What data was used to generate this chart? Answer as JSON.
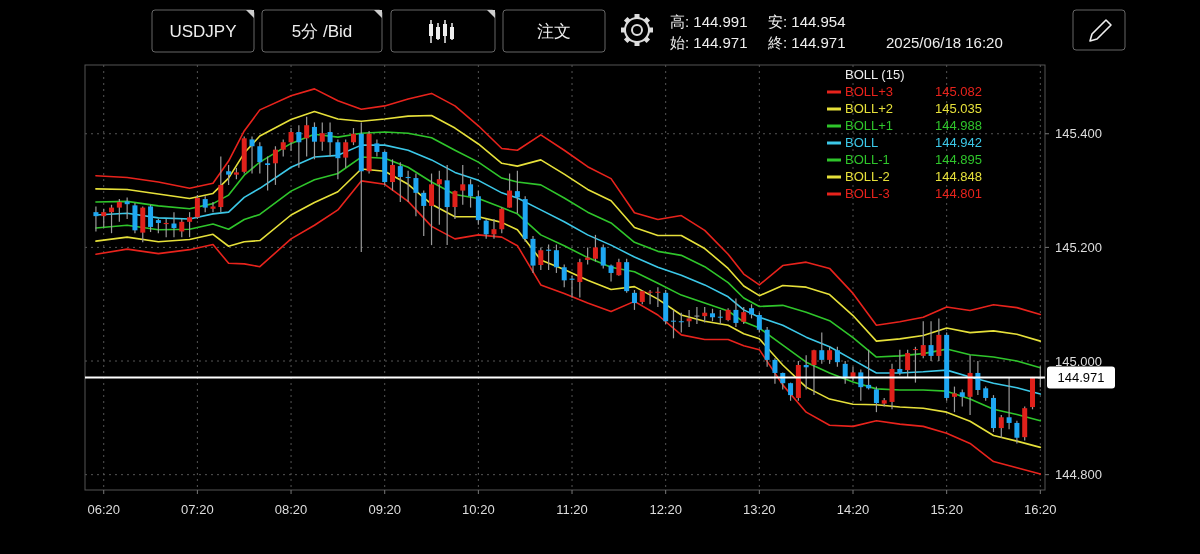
{
  "chart_data": {
    "type": "candlestick",
    "title": "USDJPY",
    "subtitle": "5分 /Bid",
    "annotations": [
      "注文",
      "高: 144.991",
      "安: 144.954",
      "始: 144.971",
      "終: 144.971",
      "2025/06/18 16:20",
      "145.082",
      "145.035",
      "144.988",
      "144.942",
      "144.895",
      "144.848",
      "144.801"
    ],
    "legend_title": "BOLL (15)",
    "legend": "top right",
    "grid": true,
    "xlim": [
      "2025-06-18T06:08",
      "2025-06-18T16:23"
    ],
    "xticks": [
      {
        "value": "2025-06-18T06:20",
        "label": "06:20"
      },
      {
        "value": "2025-06-18T07:20",
        "label": "07:20"
      },
      {
        "value": "2025-06-18T08:20",
        "label": "08:20"
      },
      {
        "value": "2025-06-18T09:20",
        "label": "09:20"
      },
      {
        "value": "2025-06-18T10:20",
        "label": "10:20"
      },
      {
        "value": "2025-06-18T11:20",
        "label": "11:20"
      },
      {
        "value": "2025-06-18T12:20",
        "label": "12:20"
      },
      {
        "value": "2025-06-18T13:20",
        "label": "13:20"
      },
      {
        "value": "2025-06-18T14:20",
        "label": "14:20"
      },
      {
        "value": "2025-06-18T15:20",
        "label": "15:20"
      },
      {
        "value": "2025-06-18T16:20",
        "label": "16:20"
      }
    ],
    "ylim": [
      144.773,
      145.521
    ],
    "yticks": [
      {
        "value": 144.8,
        "label": "144.800"
      },
      {
        "value": 145.0,
        "label": "145.000"
      },
      {
        "value": 145.2,
        "label": "145.200"
      },
      {
        "value": 145.4,
        "label": "145.400"
      }
    ],
    "ref_lines": [
      {
        "axis": "y",
        "value": 144.971,
        "label": "144.971",
        "color": "#ffffff"
      }
    ],
    "x": [
      "2025-06-18T06:15",
      "2025-06-18T06:35",
      "2025-06-18T06:55",
      "2025-06-18T07:15",
      "2025-06-18T07:30",
      "2025-06-18T07:40",
      "2025-06-18T07:50",
      "2025-06-18T08:00",
      "2025-06-18T08:20",
      "2025-06-18T08:35",
      "2025-06-18T08:50",
      "2025-06-18T09:05",
      "2025-06-18T09:20",
      "2025-06-18T09:35",
      "2025-06-18T09:50",
      "2025-06-18T10:05",
      "2025-06-18T10:20",
      "2025-06-18T10:35",
      "2025-06-18T10:45",
      "2025-06-18T11:00",
      "2025-06-18T11:15",
      "2025-06-18T11:30",
      "2025-06-18T11:45",
      "2025-06-18T12:00",
      "2025-06-18T12:15",
      "2025-06-18T12:30",
      "2025-06-18T12:45",
      "2025-06-18T13:00",
      "2025-06-18T13:10",
      "2025-06-18T13:20",
      "2025-06-18T13:35",
      "2025-06-18T13:50",
      "2025-06-18T14:05",
      "2025-06-18T14:20",
      "2025-06-18T14:35",
      "2025-06-18T14:50",
      "2025-06-18T15:05",
      "2025-06-18T15:20",
      "2025-06-18T15:35",
      "2025-06-18T15:50",
      "2025-06-18T16:05",
      "2025-06-18T16:20"
    ],
    "series": [
      {
        "type": "line",
        "name": "BOLL+3",
        "color": "#e8231c",
        "values": [
          145.326,
          145.323,
          145.315,
          145.304,
          145.313,
          145.352,
          145.405,
          145.442,
          145.467,
          145.479,
          145.458,
          145.443,
          145.449,
          145.461,
          145.471,
          145.449,
          145.414,
          145.374,
          145.371,
          145.398,
          145.371,
          145.342,
          145.321,
          145.261,
          145.249,
          145.256,
          145.23,
          145.188,
          145.153,
          145.134,
          145.168,
          145.174,
          145.163,
          145.119,
          145.063,
          145.069,
          145.077,
          145.095,
          145.089,
          145.099,
          145.094,
          145.082
        ]
      },
      {
        "type": "line",
        "name": "BOLL+2",
        "color": "#e6e03a",
        "values": [
          145.303,
          145.302,
          145.294,
          145.286,
          145.295,
          145.322,
          145.366,
          145.396,
          145.425,
          145.439,
          145.426,
          145.422,
          145.426,
          145.431,
          145.432,
          145.41,
          145.382,
          145.348,
          145.343,
          145.354,
          145.329,
          145.302,
          145.282,
          145.235,
          145.221,
          145.221,
          145.198,
          145.163,
          145.132,
          145.115,
          145.133,
          145.13,
          145.117,
          145.08,
          145.035,
          145.039,
          145.045,
          145.058,
          145.05,
          145.053,
          145.047,
          145.035
        ]
      },
      {
        "type": "line",
        "name": "BOLL+1",
        "color": "#2fc52b",
        "values": [
          145.28,
          145.281,
          145.273,
          145.268,
          145.277,
          145.292,
          145.327,
          145.35,
          145.383,
          145.399,
          145.394,
          145.401,
          145.403,
          145.401,
          145.393,
          145.371,
          145.35,
          145.322,
          145.315,
          145.31,
          145.287,
          145.262,
          145.243,
          145.209,
          145.193,
          145.186,
          145.166,
          145.138,
          145.111,
          145.096,
          145.098,
          145.086,
          145.071,
          145.041,
          145.007,
          145.009,
          145.013,
          145.021,
          145.011,
          145.007,
          145.0,
          144.988
        ]
      },
      {
        "type": "line",
        "name": "BOLL",
        "color": "#3cc8e8",
        "values": [
          145.257,
          145.26,
          145.252,
          145.25,
          145.259,
          145.262,
          145.288,
          145.304,
          145.341,
          145.359,
          145.362,
          145.38,
          145.38,
          145.371,
          145.354,
          145.332,
          145.318,
          145.296,
          145.287,
          145.266,
          145.245,
          145.222,
          145.204,
          145.183,
          145.165,
          145.151,
          145.134,
          145.113,
          145.09,
          145.077,
          145.063,
          145.042,
          145.025,
          145.002,
          144.979,
          144.979,
          144.981,
          144.984,
          144.972,
          144.961,
          144.953,
          144.942
        ]
      },
      {
        "type": "line",
        "name": "BOLL-1",
        "color": "#2fc52b",
        "values": [
          145.234,
          145.239,
          145.231,
          145.232,
          145.241,
          145.232,
          145.249,
          145.258,
          145.299,
          145.319,
          145.33,
          145.359,
          145.357,
          145.341,
          145.315,
          145.293,
          145.286,
          145.27,
          145.259,
          145.222,
          145.203,
          145.182,
          145.165,
          145.157,
          145.137,
          145.116,
          145.102,
          145.088,
          145.069,
          145.058,
          145.028,
          144.998,
          144.979,
          144.963,
          144.951,
          144.949,
          144.949,
          144.947,
          144.933,
          144.915,
          144.906,
          144.895
        ]
      },
      {
        "type": "line",
        "name": "BOLL-2",
        "color": "#e6e03a",
        "values": [
          145.211,
          145.218,
          145.21,
          145.214,
          145.223,
          145.202,
          145.21,
          145.212,
          145.257,
          145.279,
          145.298,
          145.338,
          145.334,
          145.311,
          145.276,
          145.254,
          145.254,
          145.244,
          145.231,
          145.178,
          145.161,
          145.142,
          145.126,
          145.131,
          145.109,
          145.081,
          145.07,
          145.063,
          145.048,
          145.039,
          144.993,
          144.954,
          144.933,
          144.924,
          144.923,
          144.919,
          144.917,
          144.91,
          144.894,
          144.869,
          144.859,
          144.848
        ]
      },
      {
        "type": "line",
        "name": "BOLL-3",
        "color": "#e8231c",
        "values": [
          145.188,
          145.197,
          145.189,
          145.196,
          145.205,
          145.172,
          145.171,
          145.166,
          145.215,
          145.239,
          145.266,
          145.317,
          145.311,
          145.281,
          145.237,
          145.215,
          145.222,
          145.218,
          145.203,
          145.134,
          145.119,
          145.102,
          145.087,
          145.105,
          145.081,
          145.046,
          145.038,
          145.038,
          145.027,
          145.02,
          144.958,
          144.91,
          144.887,
          144.885,
          144.895,
          144.889,
          144.885,
          144.873,
          144.855,
          144.823,
          144.812,
          144.801
        ]
      },
      {
        "x": [
          "2025-06-18T06:15",
          "2025-06-18T06:20",
          "2025-06-18T06:25",
          "2025-06-18T06:30",
          "2025-06-18T06:35",
          "2025-06-18T06:40",
          "2025-06-18T06:45",
          "2025-06-18T06:50",
          "2025-06-18T06:55",
          "2025-06-18T07:00",
          "2025-06-18T07:05",
          "2025-06-18T07:10",
          "2025-06-18T07:15",
          "2025-06-18T07:20",
          "2025-06-18T07:25",
          "2025-06-18T07:30",
          "2025-06-18T07:35",
          "2025-06-18T07:40",
          "2025-06-18T07:45",
          "2025-06-18T07:50",
          "2025-06-18T07:55",
          "2025-06-18T08:00",
          "2025-06-18T08:05",
          "2025-06-18T08:10",
          "2025-06-18T08:15",
          "2025-06-18T08:20",
          "2025-06-18T08:25",
          "2025-06-18T08:30",
          "2025-06-18T08:35",
          "2025-06-18T08:40",
          "2025-06-18T08:45",
          "2025-06-18T08:50",
          "2025-06-18T08:55",
          "2025-06-18T09:00",
          "2025-06-18T09:05",
          "2025-06-18T09:10",
          "2025-06-18T09:15",
          "2025-06-18T09:20",
          "2025-06-18T09:25",
          "2025-06-18T09:30",
          "2025-06-18T09:35",
          "2025-06-18T09:40",
          "2025-06-18T09:45",
          "2025-06-18T09:50",
          "2025-06-18T09:55",
          "2025-06-18T10:00",
          "2025-06-18T10:05",
          "2025-06-18T10:10",
          "2025-06-18T10:15",
          "2025-06-18T10:20",
          "2025-06-18T10:25",
          "2025-06-18T10:30",
          "2025-06-18T10:35",
          "2025-06-18T10:40",
          "2025-06-18T10:45",
          "2025-06-18T10:50",
          "2025-06-18T10:55",
          "2025-06-18T11:00",
          "2025-06-18T11:05",
          "2025-06-18T11:10",
          "2025-06-18T11:15",
          "2025-06-18T11:20",
          "2025-06-18T11:25",
          "2025-06-18T11:30",
          "2025-06-18T11:35",
          "2025-06-18T11:40",
          "2025-06-18T11:45",
          "2025-06-18T11:50",
          "2025-06-18T11:55",
          "2025-06-18T12:00",
          "2025-06-18T12:05",
          "2025-06-18T12:10",
          "2025-06-18T12:15",
          "2025-06-18T12:20",
          "2025-06-18T12:25",
          "2025-06-18T12:30",
          "2025-06-18T12:35",
          "2025-06-18T12:40",
          "2025-06-18T12:45",
          "2025-06-18T12:50",
          "2025-06-18T12:55",
          "2025-06-18T13:00",
          "2025-06-18T13:05",
          "2025-06-18T13:10",
          "2025-06-18T13:15",
          "2025-06-18T13:20",
          "2025-06-18T13:25",
          "2025-06-18T13:30",
          "2025-06-18T13:35",
          "2025-06-18T13:40",
          "2025-06-18T13:45",
          "2025-06-18T13:50",
          "2025-06-18T13:55",
          "2025-06-18T14:00",
          "2025-06-18T14:05",
          "2025-06-18T14:10",
          "2025-06-18T14:15",
          "2025-06-18T14:20",
          "2025-06-18T14:25",
          "2025-06-18T14:30",
          "2025-06-18T14:35",
          "2025-06-18T14:40",
          "2025-06-18T14:45",
          "2025-06-18T14:50",
          "2025-06-18T14:55",
          "2025-06-18T15:00",
          "2025-06-18T15:05",
          "2025-06-18T15:10",
          "2025-06-18T15:15",
          "2025-06-18T15:20",
          "2025-06-18T15:25",
          "2025-06-18T15:30",
          "2025-06-18T15:35",
          "2025-06-18T15:40",
          "2025-06-18T15:45",
          "2025-06-18T15:50",
          "2025-06-18T15:55",
          "2025-06-18T16:00",
          "2025-06-18T16:05",
          "2025-06-18T16:10",
          "2025-06-18T16:15",
          "2025-06-18T16:20"
        ],
        "colors": [
          "#1ea7f2",
          "#e0211b",
          "#e0211b",
          "#e0211b",
          "#1ea7f2",
          "#1ea7f2",
          "#e0211b",
          "#1ea7f2",
          "#1ea7f2",
          "#e0211b",
          "#1ea7f2",
          "#e0211b",
          "#e0211b",
          "#e0211b",
          "#1ea7f2",
          "#e0211b",
          "#e0211b",
          "#1ea7f2",
          "#e0211b",
          "#e0211b",
          "#1ea7f2",
          "#1ea7f2",
          "#1ea7f2",
          "#e0211b",
          "#e0211b",
          "#e0211b",
          "#1ea7f2",
          "#e0211b",
          "#1ea7f2",
          "#e0211b",
          "#1ea7f2",
          "#1ea7f2",
          "#e0211b",
          "#e0211b",
          "#1ea7f2",
          "#e0211b",
          "#1ea7f2",
          "#1ea7f2",
          "#e0211b",
          "#1ea7f2",
          "#1ea7f2",
          "#1ea7f2",
          "#1ea7f2",
          "#e0211b",
          "#e0211b",
          "#1ea7f2",
          "#e0211b",
          "#e0211b",
          "#1ea7f2",
          "#1ea7f2",
          "#1ea7f2",
          "#e0211b",
          "#e0211b",
          "#e0211b",
          "#1ea7f2",
          "#1ea7f2",
          "#1ea7f2",
          "#e0211b",
          "#1ea7f2",
          "#1ea7f2",
          "#1ea7f2",
          "#1ea7f2",
          "#e0211b",
          "#e0211b",
          "#e0211b",
          "#1ea7f2",
          "#1ea7f2",
          "#e0211b",
          "#1ea7f2",
          "#1ea7f2",
          "#e0211b",
          "#e0211b",
          "#e0211b",
          "#1ea7f2",
          "#1ea7f2",
          "#1ea7f2",
          "#e0211b",
          "#9e9e9e",
          "#e0211b",
          "#1ea7f2",
          "#1ea7f2",
          "#e0211b",
          "#1ea7f2",
          "#e0211b",
          "#1ea7f2",
          "#1ea7f2",
          "#1ea7f2",
          "#1ea7f2",
          "#1ea7f2",
          "#1ea7f2",
          "#e0211b",
          "#1ea7f2",
          "#e0211b",
          "#1ea7f2",
          "#e0211b",
          "#1ea7f2",
          "#1ea7f2",
          "#e0211b",
          "#1ea7f2",
          "#1ea7f2",
          "#1ea7f2",
          "#e0211b",
          "#e0211b",
          "#1ea7f2",
          "#e0211b",
          "#e0211b",
          "#e0211b",
          "#1ea7f2",
          "#e0211b",
          "#1ea7f2",
          "#e0211b",
          "#1ea7f2",
          "#e0211b",
          "#1ea7f2",
          "#1ea7f2",
          "#1ea7f2",
          "#e0211b",
          "#1ea7f2",
          "#1ea7f2",
          "#e0211b",
          "#e0211b",
          "#9e9e9e"
        ],
        "ohlc": [
          [
            145.262,
            145.272,
            145.228,
            145.255
          ],
          [
            145.255,
            145.268,
            145.235,
            145.262
          ],
          [
            145.262,
            145.275,
            145.225,
            145.27
          ],
          [
            145.27,
            145.285,
            145.245,
            145.28
          ],
          [
            145.281,
            145.288,
            145.25,
            145.276
          ],
          [
            145.274,
            145.278,
            145.225,
            145.23
          ],
          [
            145.226,
            145.272,
            145.209,
            145.27
          ],
          [
            145.272,
            145.275,
            145.227,
            145.236
          ],
          [
            145.248,
            145.25,
            145.225,
            145.243
          ],
          [
            145.241,
            145.25,
            145.218,
            145.243
          ],
          [
            145.242,
            145.262,
            145.218,
            145.234
          ],
          [
            145.228,
            145.25,
            145.218,
            145.245
          ],
          [
            145.245,
            145.262,
            145.218,
            145.253
          ],
          [
            145.253,
            145.292,
            145.25,
            145.287
          ],
          [
            145.285,
            145.29,
            145.262,
            145.27
          ],
          [
            145.268,
            145.28,
            145.262,
            145.272
          ],
          [
            145.271,
            145.36,
            145.262,
            145.31
          ],
          [
            145.334,
            145.345,
            145.31,
            145.328
          ],
          [
            145.328,
            145.34,
            145.32,
            145.332
          ],
          [
            145.333,
            145.395,
            145.33,
            145.392
          ],
          [
            145.39,
            145.395,
            145.33,
            145.378
          ],
          [
            145.378,
            145.385,
            145.33,
            145.35
          ],
          [
            145.348,
            145.36,
            145.3,
            145.345
          ],
          [
            145.348,
            145.378,
            145.31,
            145.372
          ],
          [
            145.372,
            145.39,
            145.36,
            145.385
          ],
          [
            145.385,
            145.41,
            145.37,
            145.403
          ],
          [
            145.403,
            145.415,
            145.34,
            145.385
          ],
          [
            145.392,
            145.43,
            145.36,
            145.415
          ],
          [
            145.412,
            145.42,
            145.355,
            145.386
          ],
          [
            145.386,
            145.42,
            145.37,
            145.401
          ],
          [
            145.403,
            145.42,
            145.36,
            145.385
          ],
          [
            145.385,
            145.39,
            145.32,
            145.357
          ],
          [
            145.358,
            145.39,
            145.34,
            145.385
          ],
          [
            145.385,
            145.41,
            145.38,
            145.4
          ],
          [
            145.4,
            145.42,
            145.192,
            145.334
          ],
          [
            145.334,
            145.405,
            145.33,
            145.4
          ],
          [
            145.383,
            145.39,
            145.36,
            145.368
          ],
          [
            145.368,
            145.37,
            145.31,
            145.315
          ],
          [
            145.315,
            145.355,
            145.3,
            145.345
          ],
          [
            145.343,
            145.35,
            145.28,
            145.324
          ],
          [
            145.324,
            145.335,
            145.28,
            145.322
          ],
          [
            145.322,
            145.33,
            145.255,
            145.296
          ],
          [
            145.296,
            145.3,
            145.22,
            145.273
          ],
          [
            145.273,
            145.33,
            145.204,
            145.311
          ],
          [
            145.311,
            145.335,
            145.24,
            145.32
          ],
          [
            145.318,
            145.345,
            145.204,
            145.271
          ],
          [
            145.271,
            145.3,
            145.25,
            145.299
          ],
          [
            145.3,
            145.345,
            145.275,
            145.311
          ],
          [
            145.311,
            145.32,
            145.27,
            145.29
          ],
          [
            145.29,
            145.3,
            145.24,
            145.248
          ],
          [
            145.247,
            145.25,
            145.215,
            145.223
          ],
          [
            145.223,
            145.25,
            145.215,
            145.232
          ],
          [
            145.232,
            145.27,
            145.225,
            145.268
          ],
          [
            145.27,
            145.33,
            145.27,
            145.3
          ],
          [
            145.299,
            145.335,
            145.26,
            145.288
          ],
          [
            145.285,
            145.29,
            145.21,
            145.215
          ],
          [
            145.215,
            145.22,
            145.155,
            145.168
          ],
          [
            145.169,
            145.2,
            145.16,
            145.195
          ],
          [
            145.196,
            145.205,
            145.16,
            145.194
          ],
          [
            145.195,
            145.205,
            145.155,
            145.165
          ],
          [
            145.165,
            145.17,
            145.13,
            145.142
          ],
          [
            145.145,
            145.15,
            145.112,
            145.143
          ],
          [
            145.139,
            145.18,
            145.112,
            145.174
          ],
          [
            145.178,
            145.2,
            145.17,
            145.182
          ],
          [
            145.18,
            145.222,
            145.175,
            145.2
          ],
          [
            145.2,
            145.205,
            145.163,
            145.168
          ],
          [
            145.168,
            145.17,
            145.14,
            145.155
          ],
          [
            145.151,
            145.18,
            145.15,
            145.174
          ],
          [
            145.174,
            145.18,
            145.12,
            145.123
          ],
          [
            145.12,
            145.125,
            145.09,
            145.102
          ],
          [
            145.104,
            145.125,
            145.1,
            145.123
          ],
          [
            145.121,
            145.125,
            145.1,
            145.122
          ],
          [
            145.12,
            145.13,
            145.095,
            145.122
          ],
          [
            145.12,
            145.125,
            145.065,
            145.07
          ],
          [
            145.071,
            145.09,
            145.04,
            145.07
          ],
          [
            145.07,
            145.085,
            145.05,
            145.069
          ],
          [
            145.07,
            145.09,
            145.06,
            145.075
          ],
          [
            145.08,
            145.095,
            145.065,
            145.08
          ],
          [
            145.079,
            145.095,
            145.068,
            145.085
          ],
          [
            145.084,
            145.092,
            145.07,
            145.077
          ],
          [
            145.078,
            145.09,
            145.065,
            145.077
          ],
          [
            145.072,
            145.093,
            145.07,
            145.09
          ],
          [
            145.09,
            145.11,
            145.06,
            145.067
          ],
          [
            145.069,
            145.095,
            145.065,
            145.086
          ],
          [
            145.093,
            145.1,
            145.075,
            145.082
          ],
          [
            145.081,
            145.085,
            145.05,
            145.055
          ],
          [
            145.055,
            145.06,
            144.99,
            145.002
          ],
          [
            145.002,
            145.005,
            144.96,
            144.979
          ],
          [
            144.979,
            144.98,
            144.95,
            144.961
          ],
          [
            144.961,
            144.962,
            144.93,
            144.94
          ],
          [
            144.935,
            145.0,
            144.93,
            144.993
          ],
          [
            144.993,
            145.01,
            144.95,
            144.989
          ],
          [
            144.993,
            145.02,
            144.94,
            145.019
          ],
          [
            145.019,
            145.05,
            144.995,
            145.002
          ],
          [
            145.002,
            145.025,
            144.995,
            145.019
          ],
          [
            145.019,
            145.025,
            144.99,
            144.998
          ],
          [
            144.995,
            145.0,
            144.96,
            144.972
          ],
          [
            144.972,
            144.99,
            144.965,
            144.98
          ],
          [
            144.98,
            144.985,
            144.93,
            144.954
          ],
          [
            144.958,
            145.02,
            144.95,
            144.952
          ],
          [
            144.95,
            144.955,
            144.91,
            144.926
          ],
          [
            144.925,
            144.935,
            144.92,
            144.931
          ],
          [
            144.928,
            144.995,
            144.915,
            144.986
          ],
          [
            144.986,
            145.02,
            144.975,
            144.979
          ],
          [
            144.984,
            145.02,
            144.97,
            145.014
          ],
          [
            145.02,
            145.025,
            144.962,
            145.021
          ],
          [
            145.009,
            145.07,
            145.005,
            145.028
          ],
          [
            145.028,
            145.07,
            145.0,
            145.009
          ],
          [
            145.009,
            145.075,
            145.0,
            145.046
          ],
          [
            145.046,
            145.05,
            144.93,
            144.935
          ],
          [
            144.937,
            144.955,
            144.91,
            144.943
          ],
          [
            144.945,
            144.95,
            144.92,
            144.937
          ],
          [
            144.937,
            145.01,
            144.905,
            144.979
          ],
          [
            144.979,
            145.0,
            144.94,
            144.949
          ],
          [
            144.952,
            144.955,
            144.93,
            144.935
          ],
          [
            144.935,
            144.94,
            144.875,
            144.882
          ],
          [
            144.882,
            144.905,
            144.865,
            144.901
          ],
          [
            144.901,
            144.97,
            144.88,
            144.891
          ],
          [
            144.891,
            144.895,
            144.855,
            144.865
          ],
          [
            144.866,
            144.92,
            144.86,
            144.917
          ],
          [
            144.919,
            144.972,
            144.915,
            144.97
          ],
          [
            144.971,
            144.991,
            144.954,
            144.971
          ]
        ]
      }
    ]
  }
}
